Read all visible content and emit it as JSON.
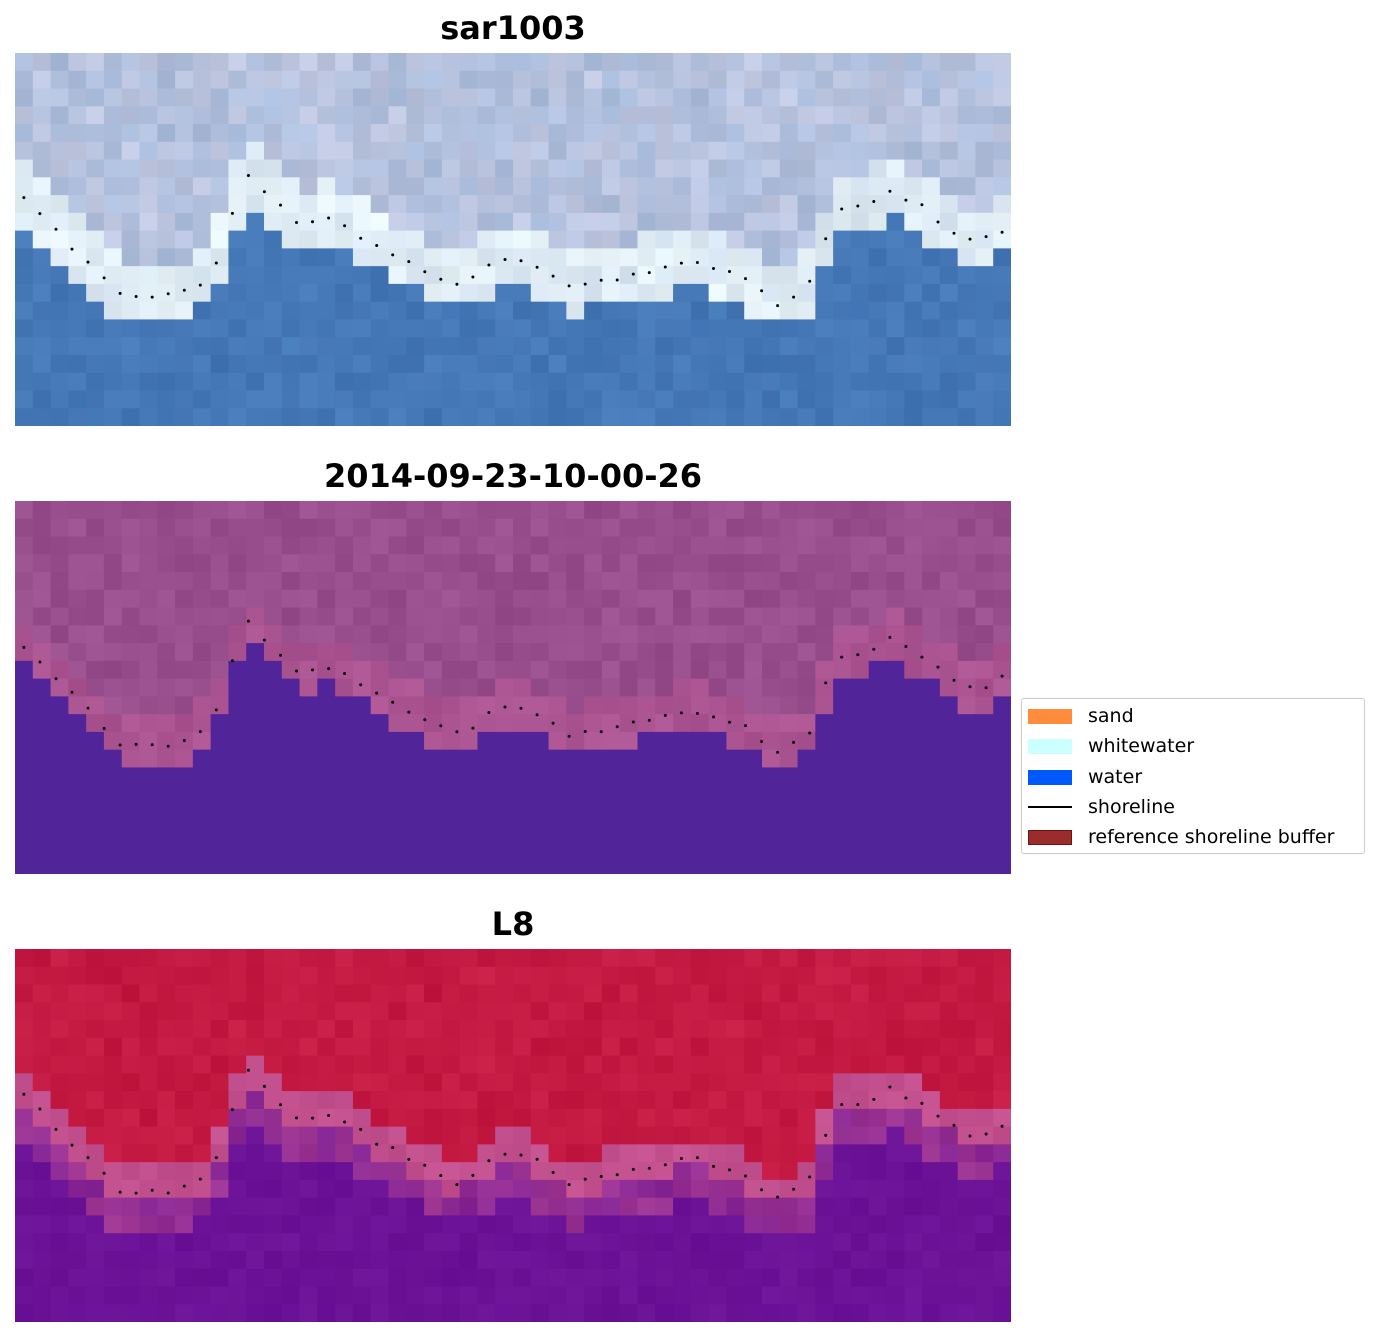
{
  "panels": [
    {
      "title": "sar1003",
      "style": "rgb"
    },
    {
      "title": "2014-09-23-10-00-26",
      "style": "class"
    },
    {
      "title": "L8",
      "style": "index"
    }
  ],
  "legend": {
    "items": [
      {
        "label": "sand",
        "color": "#ff8c3c",
        "kind": "patch"
      },
      {
        "label": "whitewater",
        "color": "#ccffff",
        "kind": "patch"
      },
      {
        "label": "water",
        "color": "#0059ff",
        "kind": "patch"
      },
      {
        "label": "shoreline",
        "color": "#000000",
        "kind": "line"
      },
      {
        "label": "reference shoreline buffer",
        "color": "#9b2c2c",
        "kind": "patch",
        "edge": "#6e1414"
      }
    ]
  },
  "colors": {
    "rgb_water": "#4374b4",
    "rgb_land": "#a9bcdb",
    "rgb_surf": "#e8f4f8",
    "class_land": "#984d8d",
    "class_water": "#52249a",
    "index_land": "#c0163f",
    "index_water": "#6a1197",
    "index_transition": "#c24f8e",
    "shoreline_dots": "#000000"
  }
}
